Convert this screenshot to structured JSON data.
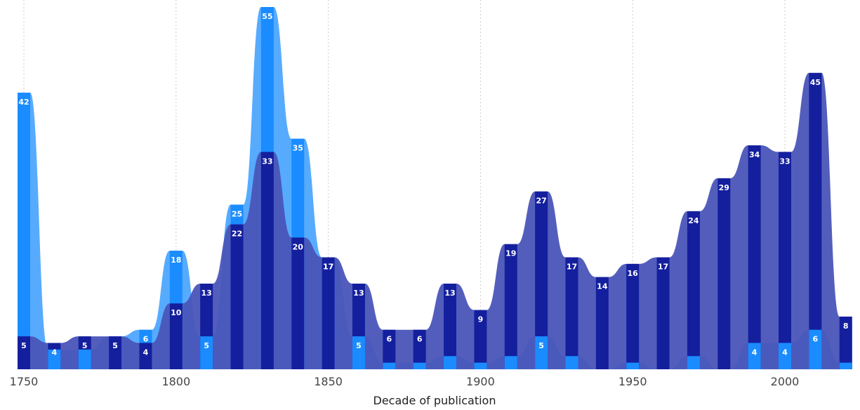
{
  "chart_data": {
    "type": "bar",
    "xlabel": "Decade of publication",
    "x_ticks": [
      "1750",
      "1800",
      "1850",
      "1900",
      "1950",
      "2000"
    ],
    "x": [
      1750,
      1760,
      1770,
      1780,
      1790,
      1800,
      1810,
      1820,
      1830,
      1840,
      1850,
      1860,
      1870,
      1880,
      1890,
      1900,
      1910,
      1920,
      1930,
      1940,
      1950,
      1960,
      1970,
      1980,
      1990,
      2000,
      2010,
      2020
    ],
    "ylim": [
      0,
      58
    ],
    "grid": true,
    "series": [
      {
        "color": "#4da6ff",
        "values": [
          42,
          3,
          3,
          5,
          6,
          18,
          5,
          25,
          55,
          35,
          17,
          5,
          1,
          1,
          2,
          1,
          2,
          5,
          2,
          0,
          1,
          0,
          2,
          0,
          4,
          4,
          6,
          1
        ],
        "labels": [
          "42",
          "",
          "",
          "5",
          "6",
          "18",
          "5",
          "25",
          "55",
          "35",
          "17",
          "5",
          "",
          "",
          "",
          "",
          "",
          "5",
          "",
          "",
          "",
          "",
          "",
          "",
          "4",
          "4",
          "6",
          ""
        ]
      },
      {
        "color": "#2a35a8",
        "values": [
          5,
          4,
          5,
          5,
          4,
          10,
          13,
          22,
          33,
          20,
          17,
          13,
          6,
          6,
          13,
          9,
          19,
          27,
          17,
          14,
          16,
          17,
          24,
          29,
          34,
          33,
          45,
          8
        ],
        "labels": [
          "5",
          "4",
          "5",
          "5",
          "4",
          "10",
          "13",
          "22",
          "33",
          "20",
          "17",
          "13",
          "6",
          "6",
          "13",
          "9",
          "19",
          "27",
          "17",
          "14",
          "16",
          "17",
          "24",
          "29",
          "34",
          "33",
          "45",
          "8"
        ]
      }
    ]
  }
}
